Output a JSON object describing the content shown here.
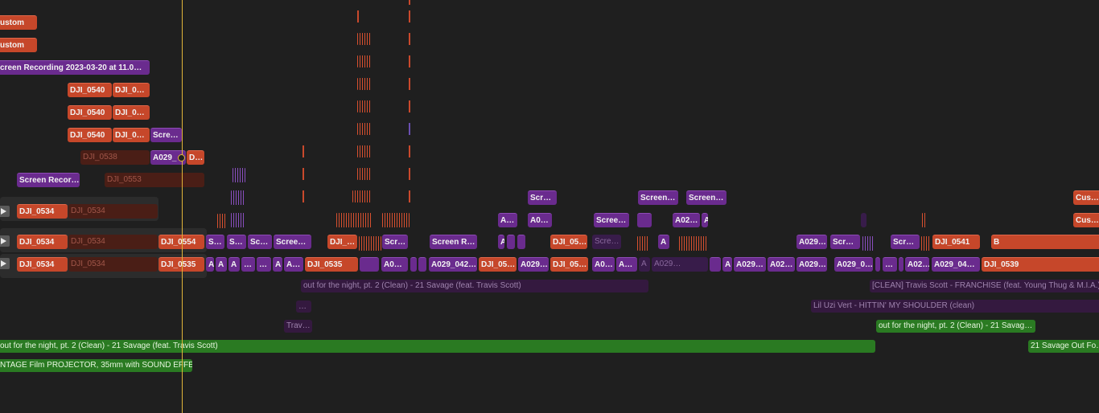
{
  "timeline": {
    "clips": {
      "custom1": "ustom",
      "custom2": "ustom",
      "screen_recording": "creen Recording 2023-03-20 at 11.0…",
      "dji0540_a": "DJI_0540",
      "dji0_a": "DJI_0…",
      "dji0540_b": "DJI_0540",
      "dji0_b": "DJI_0…",
      "dji0540_c": "DJI_0540",
      "dji0_c": "DJI_0…",
      "scre_c": "Scre…",
      "dji0538": "DJI_0538",
      "a029_under": "A029_",
      "d_small": "D…",
      "screen_recor": "Screen Recor…",
      "dji0553": "DJI_0553",
      "scr_r7": "Scr…",
      "screen_r7a": "Screen…",
      "screen_r7b": "Screen…",
      "cus_r7": "Cus…",
      "dji0534_r8": "DJI_0534",
      "dji0534_r8_dim": "DJI_0534",
      "a_r8": "A…",
      "a0_r8": "A0…",
      "scree_r8": "Scree…",
      "a02_r8": "A02…",
      "a_tiny_r8": "A",
      "cus_r8": "Cus…",
      "dji0534_r9": "DJI_0534",
      "dji0534_r9_dim": "DJI_0534",
      "dji0554": "DJI_0554",
      "s_r9": "S…",
      "s_r9b": "S…",
      "sc_r9": "Sc…",
      "scree_r9": "Scree…",
      "dji_r9": "DJI_…",
      "scr_r9": "Scr…",
      "screen_r_r9": "Screen R…",
      "a_slash_r9": "A",
      "dji05_r9": "DJI_05…",
      "scre_r9_dim": "Scre…",
      "a_r9": "A",
      "a029_r9": "A029…",
      "scr_r9b": "Scr…",
      "scr_r9c": "Scr…",
      "dji0541": "DJI_0541",
      "b_r9": "B",
      "dji0534_r10": "DJI_0534",
      "dji0534_r10_dim": "DJI_0534",
      "dji0535_a": "DJI_0535",
      "a_r10a": "A",
      "a_r10b": "A",
      "dots_r10a": "…",
      "dots_r10b": "…",
      "a_r10c": "A",
      "a_r10d": "A…",
      "dji0535_b": "DJI_0535",
      "a0_r10": "A0…",
      "a_r10e": "A",
      "a029_042": "A029_042…",
      "dji05_r10a": "DJI_05…",
      "a029_r10": "A029…",
      "dji05_r10b": "DJI_05…",
      "a0_r10b": "A0…",
      "a_r10f": "A…",
      "a_r10g": "A",
      "a029_r10_dim": "A029…",
      "a_r10h": "A",
      "a029_r10b": "A029…",
      "a02_r10": "A02…",
      "a029_r10c": "A029…",
      "a029_0": "A029_0…",
      "dots_r10c": "…",
      "a02_r10b": "A02…",
      "a029_04": "A029_04…",
      "dji0539": "DJI_0539"
    },
    "audio": {
      "out_for_night_1": "out for the night, pt. 2 (Clean) - 21 Savage (feat. Travis Scott)",
      "franchise": "[CLEAN] Travis Scott - FRANCHISE (feat. Young Thug & M.I.A.)",
      "dots_a": "…",
      "lil_uzi": "Lil Uzi Vert - HITTIN' MY SHOULDER (clean)",
      "trav": "Trav…",
      "out_for_night_2": "out for the night, pt. 2 (Clean) - 21 Savag…",
      "out_for_night_3": "out for the night, pt. 2 (Clean) - 21 Savage (feat. Travis Scott)",
      "savage_outfo": "21 Savage  Out Fo…",
      "projector": "NTAGE Film PROJECTOR, 35mm with SOUND EFFE…"
    }
  }
}
